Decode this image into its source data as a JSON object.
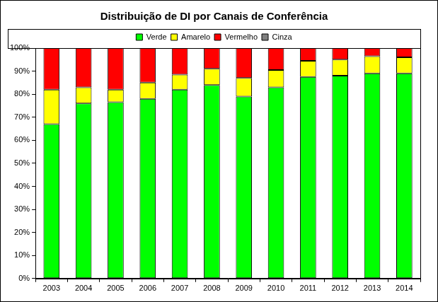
{
  "chart_data": {
    "type": "bar",
    "title": "Distribuição de DI por Canais de Conferência",
    "categories": [
      "2003",
      "2004",
      "2005",
      "2006",
      "2007",
      "2008",
      "2009",
      "2010",
      "2011",
      "2012",
      "2013",
      "2014"
    ],
    "series": [
      {
        "name": "Verde",
        "color": "#00ff00",
        "values": [
          67,
          76,
          76.5,
          78,
          82,
          84,
          79,
          83,
          87.5,
          88,
          89,
          89
        ]
      },
      {
        "name": "Amarelo",
        "color": "#ffff00",
        "values": [
          15,
          7,
          5.5,
          7,
          6.5,
          7,
          8,
          7.5,
          7,
          7,
          7.5,
          7
        ]
      },
      {
        "name": "Vermelho",
        "color": "#ff0000",
        "values": [
          18,
          17,
          18,
          15,
          11.5,
          9,
          13,
          9.5,
          5.5,
          5,
          3.5,
          4
        ]
      },
      {
        "name": "Cinza",
        "color": "#808080",
        "values": [
          0,
          0,
          0,
          0,
          0,
          0,
          0,
          0,
          0,
          0,
          0,
          0
        ]
      }
    ],
    "stacked": true,
    "legend": "top",
    "grid": false,
    "ylim": [
      0,
      100
    ],
    "yticks": [
      {
        "value": 0,
        "label": "0%"
      },
      {
        "value": 10,
        "label": "10%"
      },
      {
        "value": 20,
        "label": "20%"
      },
      {
        "value": 30,
        "label": "30%"
      },
      {
        "value": 40,
        "label": "40%"
      },
      {
        "value": 50,
        "label": "50%"
      },
      {
        "value": 60,
        "label": "60%"
      },
      {
        "value": 70,
        "label": "70%"
      },
      {
        "value": 80,
        "label": "80%"
      },
      {
        "value": 90,
        "label": "90%"
      },
      {
        "value": 100,
        "label": "100%"
      }
    ]
  }
}
